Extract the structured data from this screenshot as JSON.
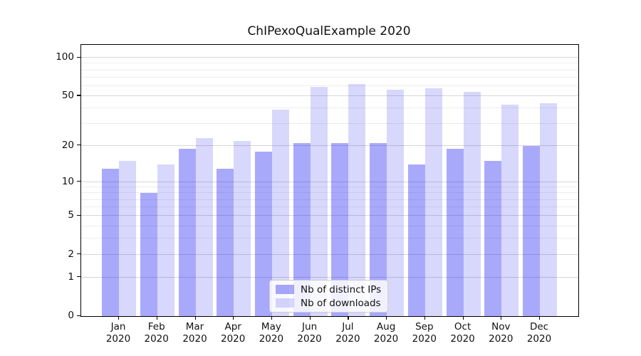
{
  "chart_data": {
    "type": "bar",
    "title": "ChIPexoQualExample 2020",
    "categories": [
      "Jan",
      "Feb",
      "Mar",
      "Apr",
      "May",
      "Jun",
      "Jul",
      "Aug",
      "Sep",
      "Oct",
      "Nov",
      "Dec"
    ],
    "x_tick_year": "2020",
    "series": [
      {
        "name": "Nb of distinct IPs",
        "color": "rgba(10,10,245,0.35)",
        "values": [
          13,
          8,
          19,
          13,
          18,
          21,
          21,
          21,
          14,
          19,
          15,
          20
        ]
      },
      {
        "name": "Nb of downloads",
        "color": "rgba(10,10,245,0.16)",
        "values": [
          15,
          14,
          23,
          22,
          39,
          59,
          62,
          56,
          58,
          54,
          43,
          44
        ]
      }
    ],
    "y_axis": {
      "scale": "log10(value+1)",
      "major_ticks": [
        0,
        1,
        2,
        5,
        10,
        20,
        50,
        100
      ],
      "minor_gridlines": [
        3,
        4,
        6,
        7,
        8,
        9,
        30,
        40,
        60,
        70,
        80,
        90
      ],
      "ylim": [
        0,
        126
      ]
    },
    "xlabel": "",
    "ylabel": "",
    "grid": true,
    "legend_position": "lower center",
    "colors": {
      "major_grid": "#d7d7d7",
      "minor_grid": "#ededed",
      "spine": "#000000",
      "background": "#ffffff"
    }
  }
}
